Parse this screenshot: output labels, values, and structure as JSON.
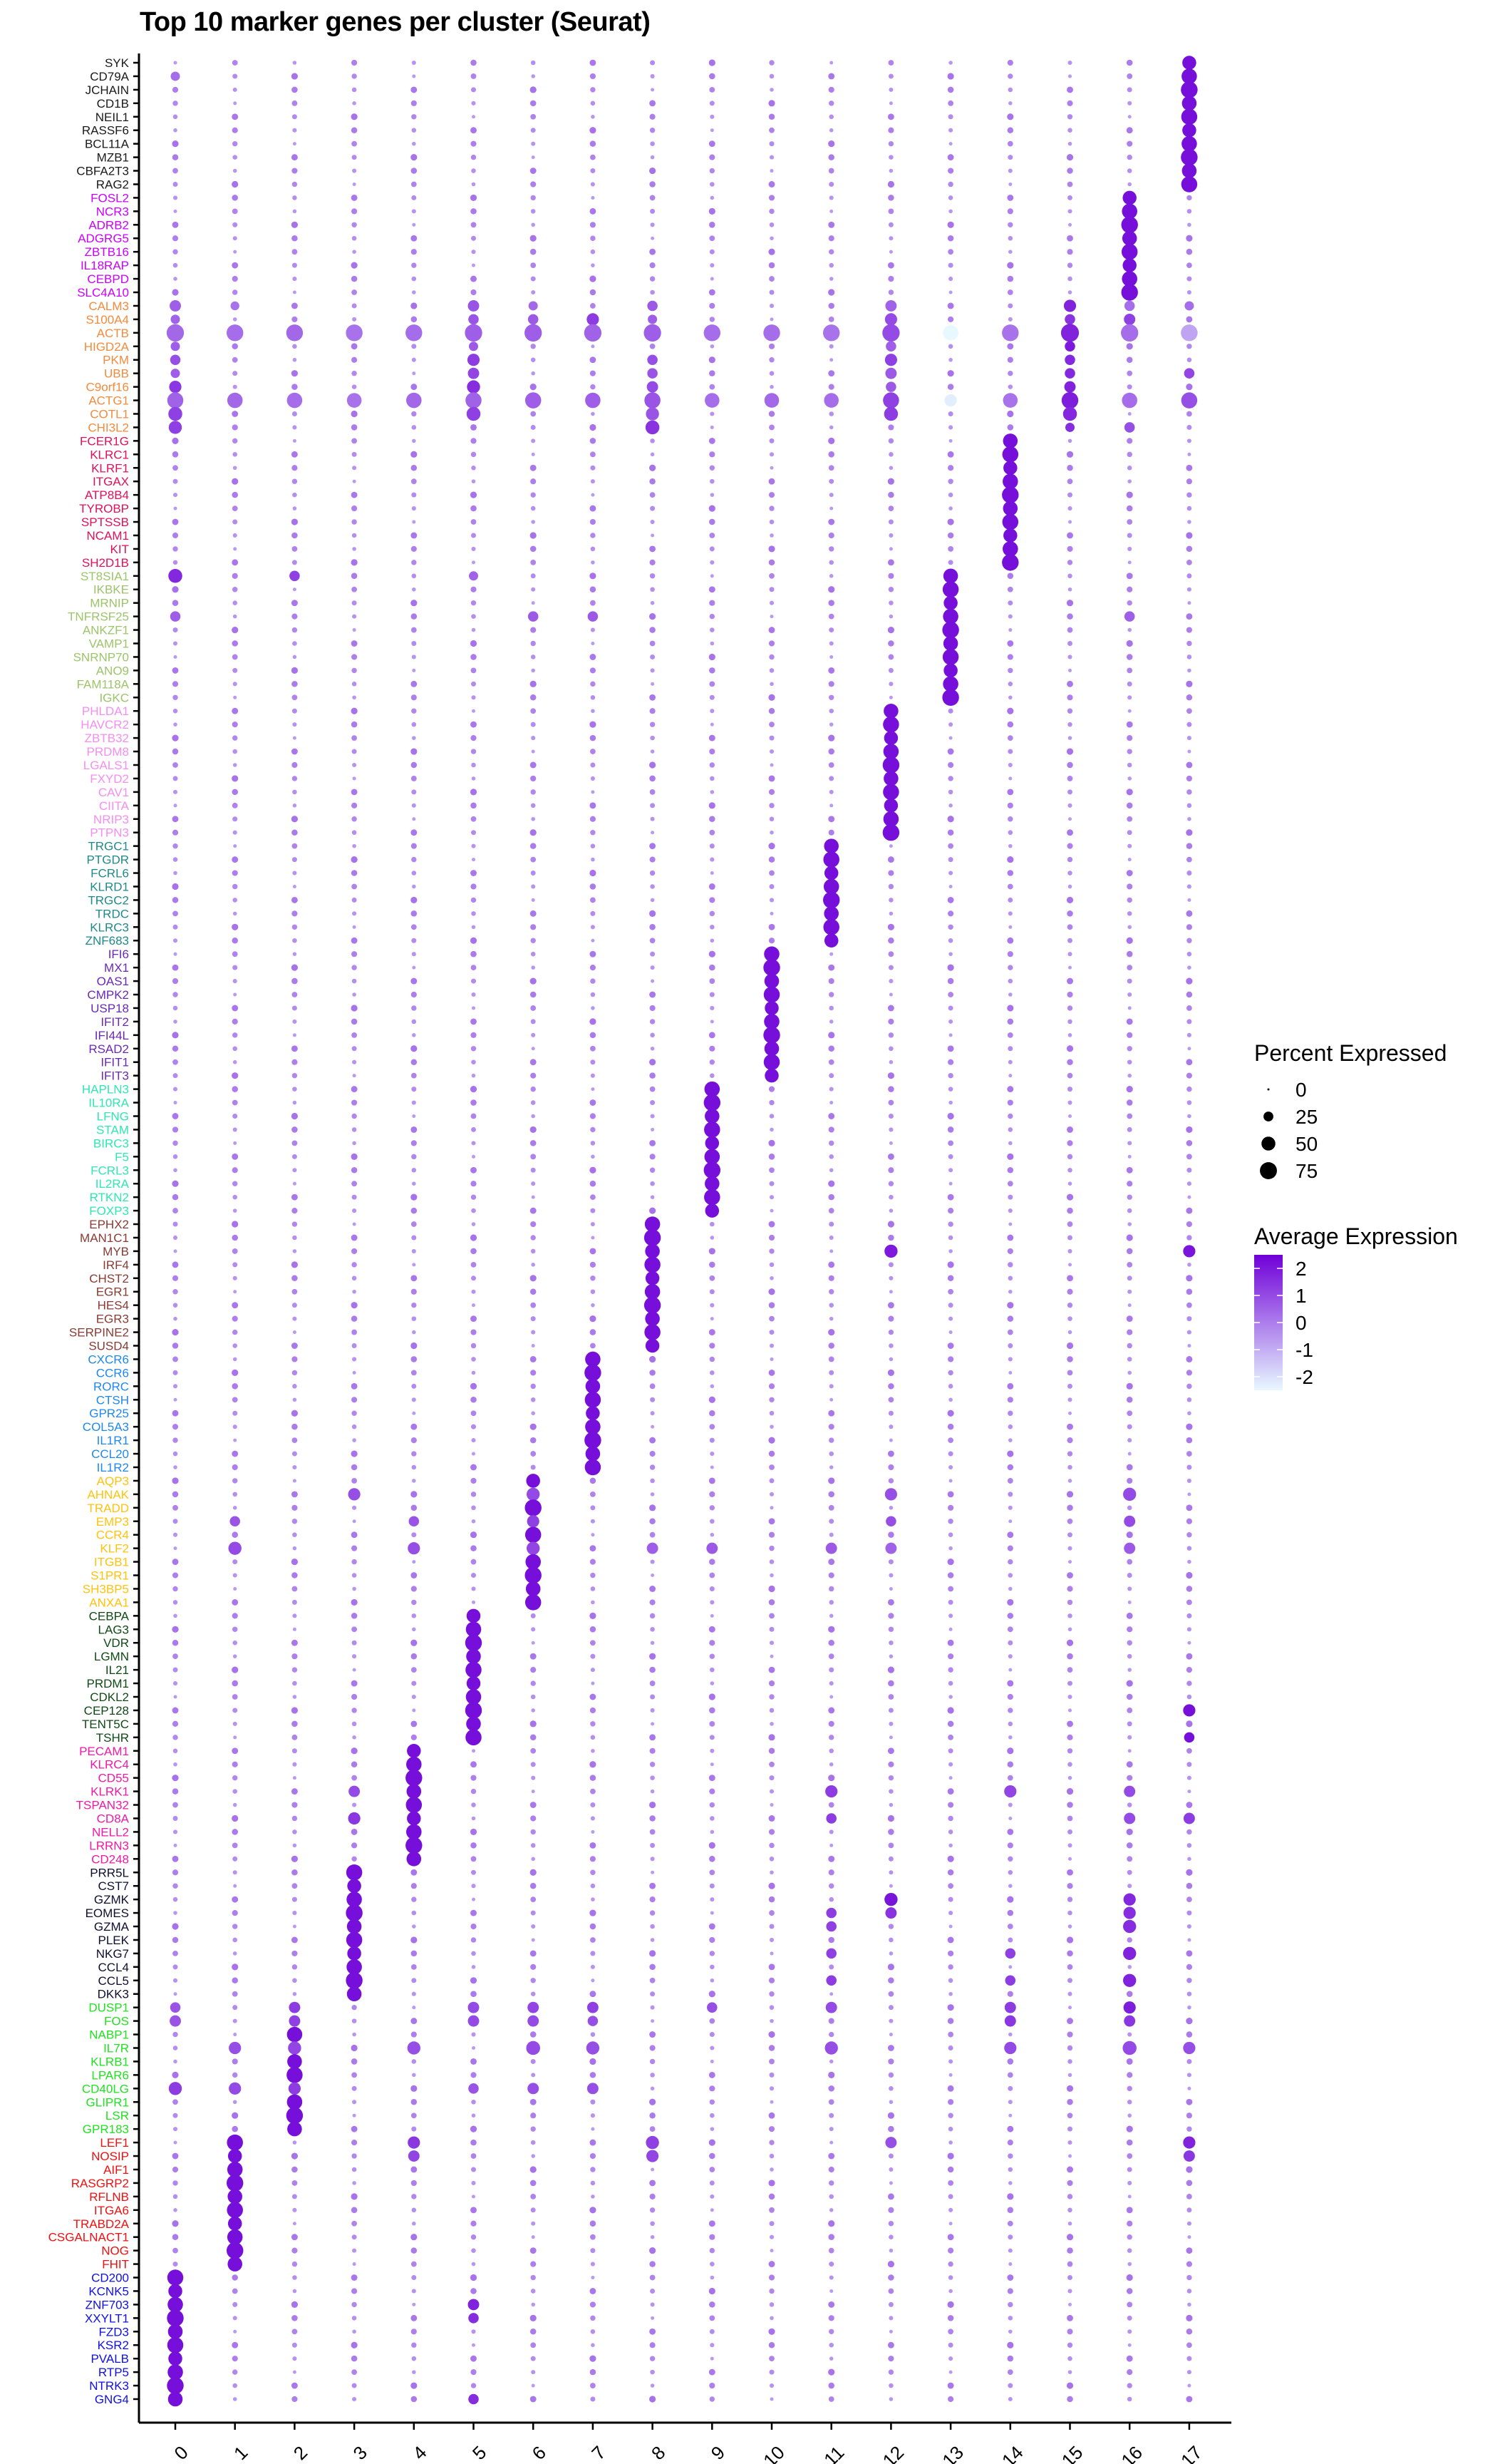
{
  "chart_data": {
    "type": "dotplot",
    "title": "Top 10 marker genes per cluster (Seurat)",
    "xlabel": "",
    "ylabel": "",
    "clusters": [
      "0",
      "1",
      "2",
      "3",
      "4",
      "5",
      "6",
      "7",
      "8",
      "9",
      "10",
      "11",
      "12",
      "13",
      "14",
      "15",
      "16",
      "17"
    ],
    "gene_groups": [
      {
        "cluster": "17",
        "color": "#1a1a1a",
        "genes": [
          "SYK",
          "CD79A",
          "JCHAIN",
          "CD1B",
          "NEIL1",
          "RASSF6",
          "BCL11A",
          "MZB1",
          "CBFA2T3",
          "RAG2"
        ]
      },
      {
        "cluster": "16",
        "color": "#cc00ff",
        "genes": [
          "FOSL2",
          "NCR3",
          "ADRB2",
          "ADGRG5",
          "ZBTB16",
          "IL18RAP",
          "CEBPD",
          "SLC4A10"
        ]
      },
      {
        "cluster": "15",
        "color": "#f58a3c",
        "genes": [
          "CALM3",
          "S100A4",
          "ACTB",
          "HIGD2A",
          "PKM",
          "UBB",
          "C9orf16",
          "ACTG1",
          "COTL1",
          "CHI3L2"
        ]
      },
      {
        "cluster": "14",
        "color": "#e0105a",
        "genes": [
          "FCER1G",
          "KLRC1",
          "KLRF1",
          "ITGAX",
          "ATP8B4",
          "TYROBP",
          "SPTSSB",
          "NCAM1",
          "KIT",
          "SH2D1B"
        ]
      },
      {
        "cluster": "13",
        "color": "#9cc46a",
        "genes": [
          "ST8SIA1",
          "IKBKE",
          "MRNIP",
          "TNFRSF25",
          "ANKZF1",
          "VAMP1",
          "SNRNP70",
          "ANO9",
          "FAM118A",
          "IGKC"
        ]
      },
      {
        "cluster": "12",
        "color": "#f58ef0",
        "genes": [
          "PHLDA1",
          "HAVCR2",
          "ZBTB32",
          "PRDM8",
          "LGALS1",
          "FXYD2",
          "CAV1",
          "CIITA",
          "NRIP3",
          "PTPN3"
        ]
      },
      {
        "cluster": "11",
        "color": "#1f8a8a",
        "genes": [
          "TRGC1",
          "PTGDR",
          "FCRL6",
          "KLRD1",
          "TRGC2",
          "TRDC",
          "KLRC3",
          "ZNF683"
        ]
      },
      {
        "cluster": "10",
        "color": "#6a28b8",
        "genes": [
          "IFI6",
          "MX1",
          "OAS1",
          "CMPK2",
          "USP18",
          "IFIT2",
          "IFI44L",
          "RSAD2",
          "IFIT1",
          "IFIT3"
        ]
      },
      {
        "cluster": "9",
        "color": "#2ee8b0",
        "genes": [
          "HAPLN3",
          "IL10RA",
          "LFNG",
          "STAM",
          "BIRC3",
          "F5",
          "FCRL3",
          "IL2RA",
          "RTKN2",
          "FOXP3"
        ]
      },
      {
        "cluster": "8",
        "color": "#8a3a32",
        "genes": [
          "EPHX2",
          "MAN1C1",
          "MYB",
          "IRF4",
          "CHST2",
          "EGR1",
          "HES4",
          "EGR3",
          "SERPINE2",
          "SUSD4"
        ]
      },
      {
        "cluster": "7",
        "color": "#1e88f0",
        "genes": [
          "CXCR6",
          "CCR6",
          "RORC",
          "CTSH",
          "GPR25",
          "COL5A3",
          "IL1R1",
          "CCL20",
          "IL1R2"
        ]
      },
      {
        "cluster": "6",
        "color": "#ffc20e",
        "genes": [
          "AQP3",
          "AHNAK",
          "TRADD",
          "EMP3",
          "CCR4",
          "KLF2",
          "ITGB1",
          "S1PR1",
          "SH3BP5",
          "ANXA1"
        ]
      },
      {
        "cluster": "5",
        "color": "#0f4a14",
        "genes": [
          "CEBPA",
          "LAG3",
          "VDR",
          "LGMN",
          "IL21",
          "PRDM1",
          "CDKL2",
          "CEP128",
          "TENT5C",
          "TSHR"
        ]
      },
      {
        "cluster": "4",
        "color": "#f01aa6",
        "genes": [
          "PECAM1",
          "KLRC4",
          "CD55",
          "KLRK1",
          "TSPAN32",
          "CD8A",
          "NELL2",
          "LRRN3",
          "CD248"
        ]
      },
      {
        "cluster": "3",
        "color": "#0e0e30",
        "genes": [
          "PRR5L",
          "CST7",
          "GZMK",
          "EOMES",
          "GZMA",
          "PLEK",
          "NKG7",
          "CCL4",
          "CCL5",
          "DKK3"
        ]
      },
      {
        "cluster": "2",
        "color": "#22e022",
        "genes": [
          "DUSP1",
          "FOS",
          "NABP1",
          "IL7R",
          "KLRB1",
          "LPAR6",
          "CD40LG",
          "GLIPR1",
          "LSR",
          "GPR183"
        ]
      },
      {
        "cluster": "1",
        "color": "#f01010",
        "genes": [
          "LEF1",
          "NOSIP",
          "AIF1",
          "RASGRP2",
          "RFLNB",
          "ITGA6",
          "TRABD2A",
          "CSGALNACT1",
          "NOG",
          "FHIT"
        ]
      },
      {
        "cluster": "0",
        "color": "#1010e8",
        "genes": [
          "CD200",
          "KCNK5",
          "ZNF703",
          "XXYLT1",
          "FZD3",
          "KSR2",
          "PVALB",
          "RTP5",
          "NTRK3",
          "GNG4"
        ]
      }
    ],
    "background_cell": {
      "pct": 5,
      "avg": -0.3
    },
    "home_cell_default": {
      "pct": 45,
      "avg": 2.2
    },
    "overrides": {
      "CD79A": {
        "0": [
          20,
          0.3
        ]
      },
      "CALM3": {
        "0": [
          30,
          0.6
        ],
        "1": [
          18,
          0.2
        ],
        "5": [
          30,
          0.8
        ],
        "6": [
          20,
          0.4
        ],
        "8": [
          25,
          0.7
        ],
        "12": [
          30,
          0.5
        ],
        "15": [
          35,
          1.8
        ],
        "16": [
          25,
          0.3
        ],
        "17": [
          20,
          0.3
        ]
      },
      "S100A4": {
        "0": [
          20,
          0.5
        ],
        "5": [
          25,
          0.8
        ],
        "6": [
          25,
          0.7
        ],
        "7": [
          35,
          1.3
        ],
        "8": [
          20,
          0.6
        ],
        "12": [
          35,
          1.0
        ],
        "15": [
          25,
          1.5
        ],
        "16": [
          30,
          1.2
        ]
      },
      "ACTB": {
        "0": [
          70,
          0.4
        ],
        "1": [
          65,
          0.3
        ],
        "2": [
          65,
          0.4
        ],
        "3": [
          65,
          0.2
        ],
        "4": [
          65,
          0.3
        ],
        "5": [
          70,
          0.6
        ],
        "6": [
          70,
          0.6
        ],
        "7": [
          70,
          0.5
        ],
        "8": [
          70,
          0.6
        ],
        "9": [
          65,
          0.3
        ],
        "10": [
          65,
          0.3
        ],
        "11": [
          65,
          0.2
        ],
        "12": [
          70,
          1.0
        ],
        "13": [
          55,
          -2.5
        ],
        "14": [
          65,
          0.2
        ],
        "15": [
          75,
          1.8
        ],
        "16": [
          70,
          0.3
        ],
        "17": [
          65,
          -0.8
        ]
      },
      "HIGD2A": {
        "0": [
          20,
          0.6
        ],
        "5": [
          20,
          0.7
        ],
        "12": [
          25,
          0.6
        ],
        "15": [
          25,
          2.0
        ]
      },
      "PKM": {
        "0": [
          25,
          0.9
        ],
        "5": [
          35,
          1.3
        ],
        "8": [
          25,
          0.9
        ],
        "12": [
          35,
          1.2
        ],
        "15": [
          25,
          1.7
        ]
      },
      "UBB": {
        "0": [
          20,
          0.6
        ],
        "5": [
          30,
          1.1
        ],
        "8": [
          25,
          0.8
        ],
        "12": [
          30,
          0.7
        ],
        "15": [
          25,
          1.7
        ],
        "17": [
          25,
          1.1
        ]
      },
      "C9orf16": {
        "0": [
          35,
          1.4
        ],
        "5": [
          40,
          1.6
        ],
        "8": [
          30,
          1.0
        ],
        "12": [
          25,
          0.7
        ],
        "15": [
          30,
          1.8
        ]
      },
      "ACTG1": {
        "0": [
          60,
          0.5
        ],
        "1": [
          55,
          0.4
        ],
        "2": [
          55,
          0.3
        ],
        "3": [
          50,
          0.2
        ],
        "4": [
          55,
          0.4
        ],
        "5": [
          60,
          0.5
        ],
        "6": [
          60,
          0.6
        ],
        "7": [
          55,
          0.6
        ],
        "8": [
          60,
          0.8
        ],
        "9": [
          50,
          0.3
        ],
        "10": [
          50,
          0.4
        ],
        "11": [
          50,
          0.3
        ],
        "12": [
          60,
          1.2
        ],
        "13": [
          35,
          -2.3
        ],
        "14": [
          50,
          0.2
        ],
        "15": [
          65,
          1.9
        ],
        "16": [
          55,
          0.3
        ],
        "17": [
          60,
          0.9
        ]
      },
      "COTL1": {
        "0": [
          45,
          1.2
        ],
        "5": [
          45,
          1.2
        ],
        "8": [
          40,
          0.8
        ],
        "12": [
          45,
          1.3
        ],
        "15": [
          45,
          1.7
        ]
      },
      "CHI3L2": {
        "0": [
          40,
          1.2
        ],
        "8": [
          45,
          1.5
        ],
        "15": [
          20,
          1.6
        ],
        "16": [
          25,
          0.9
        ]
      },
      "ST8SIA1": {
        "0": [
          45,
          1.7
        ],
        "2": [
          25,
          1.2
        ],
        "5": [
          20,
          0.5
        ]
      },
      "TNFRSF25": {
        "0": [
          25,
          0.6
        ],
        "6": [
          25,
          0.7
        ],
        "7": [
          25,
          0.7
        ],
        "16": [
          25,
          0.6
        ]
      },
      "MYB": {
        "12": [
          40,
          2.0
        ],
        "17": [
          35,
          2.1
        ]
      },
      "AHNAK": {
        "3": [
          35,
          0.9
        ],
        "6": [
          40,
          1.0
        ],
        "12": [
          35,
          0.9
        ],
        "16": [
          40,
          1.0
        ]
      },
      "EMP3": {
        "1": [
          25,
          0.8
        ],
        "4": [
          25,
          0.8
        ],
        "6": [
          35,
          1.2
        ],
        "12": [
          25,
          0.9
        ],
        "16": [
          30,
          1.0
        ]
      },
      "KLF2": {
        "1": [
          40,
          1.0
        ],
        "4": [
          35,
          0.9
        ],
        "6": [
          40,
          1.1
        ],
        "8": [
          30,
          0.6
        ],
        "9": [
          30,
          0.7
        ],
        "11": [
          30,
          0.7
        ],
        "12": [
          30,
          0.5
        ],
        "16": [
          30,
          0.7
        ]
      },
      "CEP128": {
        "17": [
          35,
          2.2
        ]
      },
      "TSHR": {
        "17": [
          25,
          2.2
        ]
      },
      "CD8A": {
        "3": [
          35,
          1.4
        ],
        "11": [
          25,
          1.3
        ],
        "16": [
          30,
          1.0
        ],
        "17": [
          30,
          1.3
        ]
      },
      "KLRK1": {
        "3": [
          30,
          1.0
        ],
        "11": [
          35,
          1.3
        ],
        "14": [
          35,
          1.1
        ],
        "16": [
          30,
          1.0
        ]
      },
      "GZMK": {
        "12": [
          40,
          2.1
        ],
        "16": [
          35,
          1.7
        ]
      },
      "EOMES": {
        "11": [
          25,
          1.3
        ],
        "12": [
          30,
          1.5
        ],
        "16": [
          35,
          1.6
        ]
      },
      "GZMA": {
        "11": [
          25,
          1.2
        ],
        "16": [
          40,
          1.6
        ]
      },
      "NKG7": {
        "11": [
          25,
          1.2
        ],
        "14": [
          25,
          1.2
        ],
        "16": [
          40,
          1.8
        ]
      },
      "CCL5": {
        "11": [
          25,
          1.3
        ],
        "14": [
          25,
          1.3
        ],
        "16": [
          40,
          1.8
        ]
      },
      "DUSP1": {
        "0": [
          25,
          0.8
        ],
        "2": [
          30,
          1.3
        ],
        "5": [
          30,
          1.0
        ],
        "6": [
          30,
          1.1
        ],
        "7": [
          30,
          1.2
        ],
        "9": [
          25,
          0.9
        ],
        "11": [
          30,
          1.0
        ],
        "14": [
          30,
          1.3
        ],
        "16": [
          35,
          1.9
        ]
      },
      "FOS": {
        "0": [
          30,
          0.8
        ],
        "2": [
          30,
          1.2
        ],
        "5": [
          30,
          1.0
        ],
        "6": [
          30,
          1.0
        ],
        "7": [
          25,
          0.9
        ],
        "14": [
          30,
          1.4
        ],
        "16": [
          30,
          1.4
        ]
      },
      "IL7R": {
        "1": [
          35,
          0.9
        ],
        "2": [
          40,
          1.1
        ],
        "4": [
          40,
          0.9
        ],
        "6": [
          45,
          1.0
        ],
        "7": [
          40,
          0.9
        ],
        "11": [
          40,
          0.9
        ],
        "14": [
          35,
          1.0
        ],
        "16": [
          45,
          1.0
        ],
        "17": [
          35,
          0.9
        ]
      },
      "CD40LG": {
        "0": [
          40,
          1.3
        ],
        "1": [
          35,
          1.0
        ],
        "2": [
          35,
          1.3
        ],
        "5": [
          25,
          0.8
        ],
        "6": [
          30,
          0.9
        ],
        "7": [
          30,
          0.9
        ]
      },
      "LEF1": {
        "4": [
          35,
          1.4
        ],
        "8": [
          40,
          1.2
        ],
        "12": [
          30,
          0.9
        ],
        "17": [
          35,
          1.8
        ]
      },
      "NOSIP": {
        "4": [
          30,
          1.1
        ],
        "8": [
          35,
          1.1
        ],
        "17": [
          30,
          1.4
        ]
      },
      "ZNF703": {
        "5": [
          30,
          1.8
        ]
      },
      "XXYLT1": {
        "5": [
          25,
          1.6
        ]
      },
      "GNG4": {
        "5": [
          25,
          1.6
        ]
      }
    },
    "size_legend": {
      "title": "Percent Expressed",
      "breaks": [
        0,
        25,
        50,
        75
      ]
    },
    "color_legend": {
      "title": "Average Expression",
      "breaks": [
        2,
        1,
        0,
        -1,
        -2
      ],
      "range": [
        -2.5,
        2.5
      ],
      "low_color": "#e8f8ff",
      "high_color": "#7000d8"
    }
  }
}
